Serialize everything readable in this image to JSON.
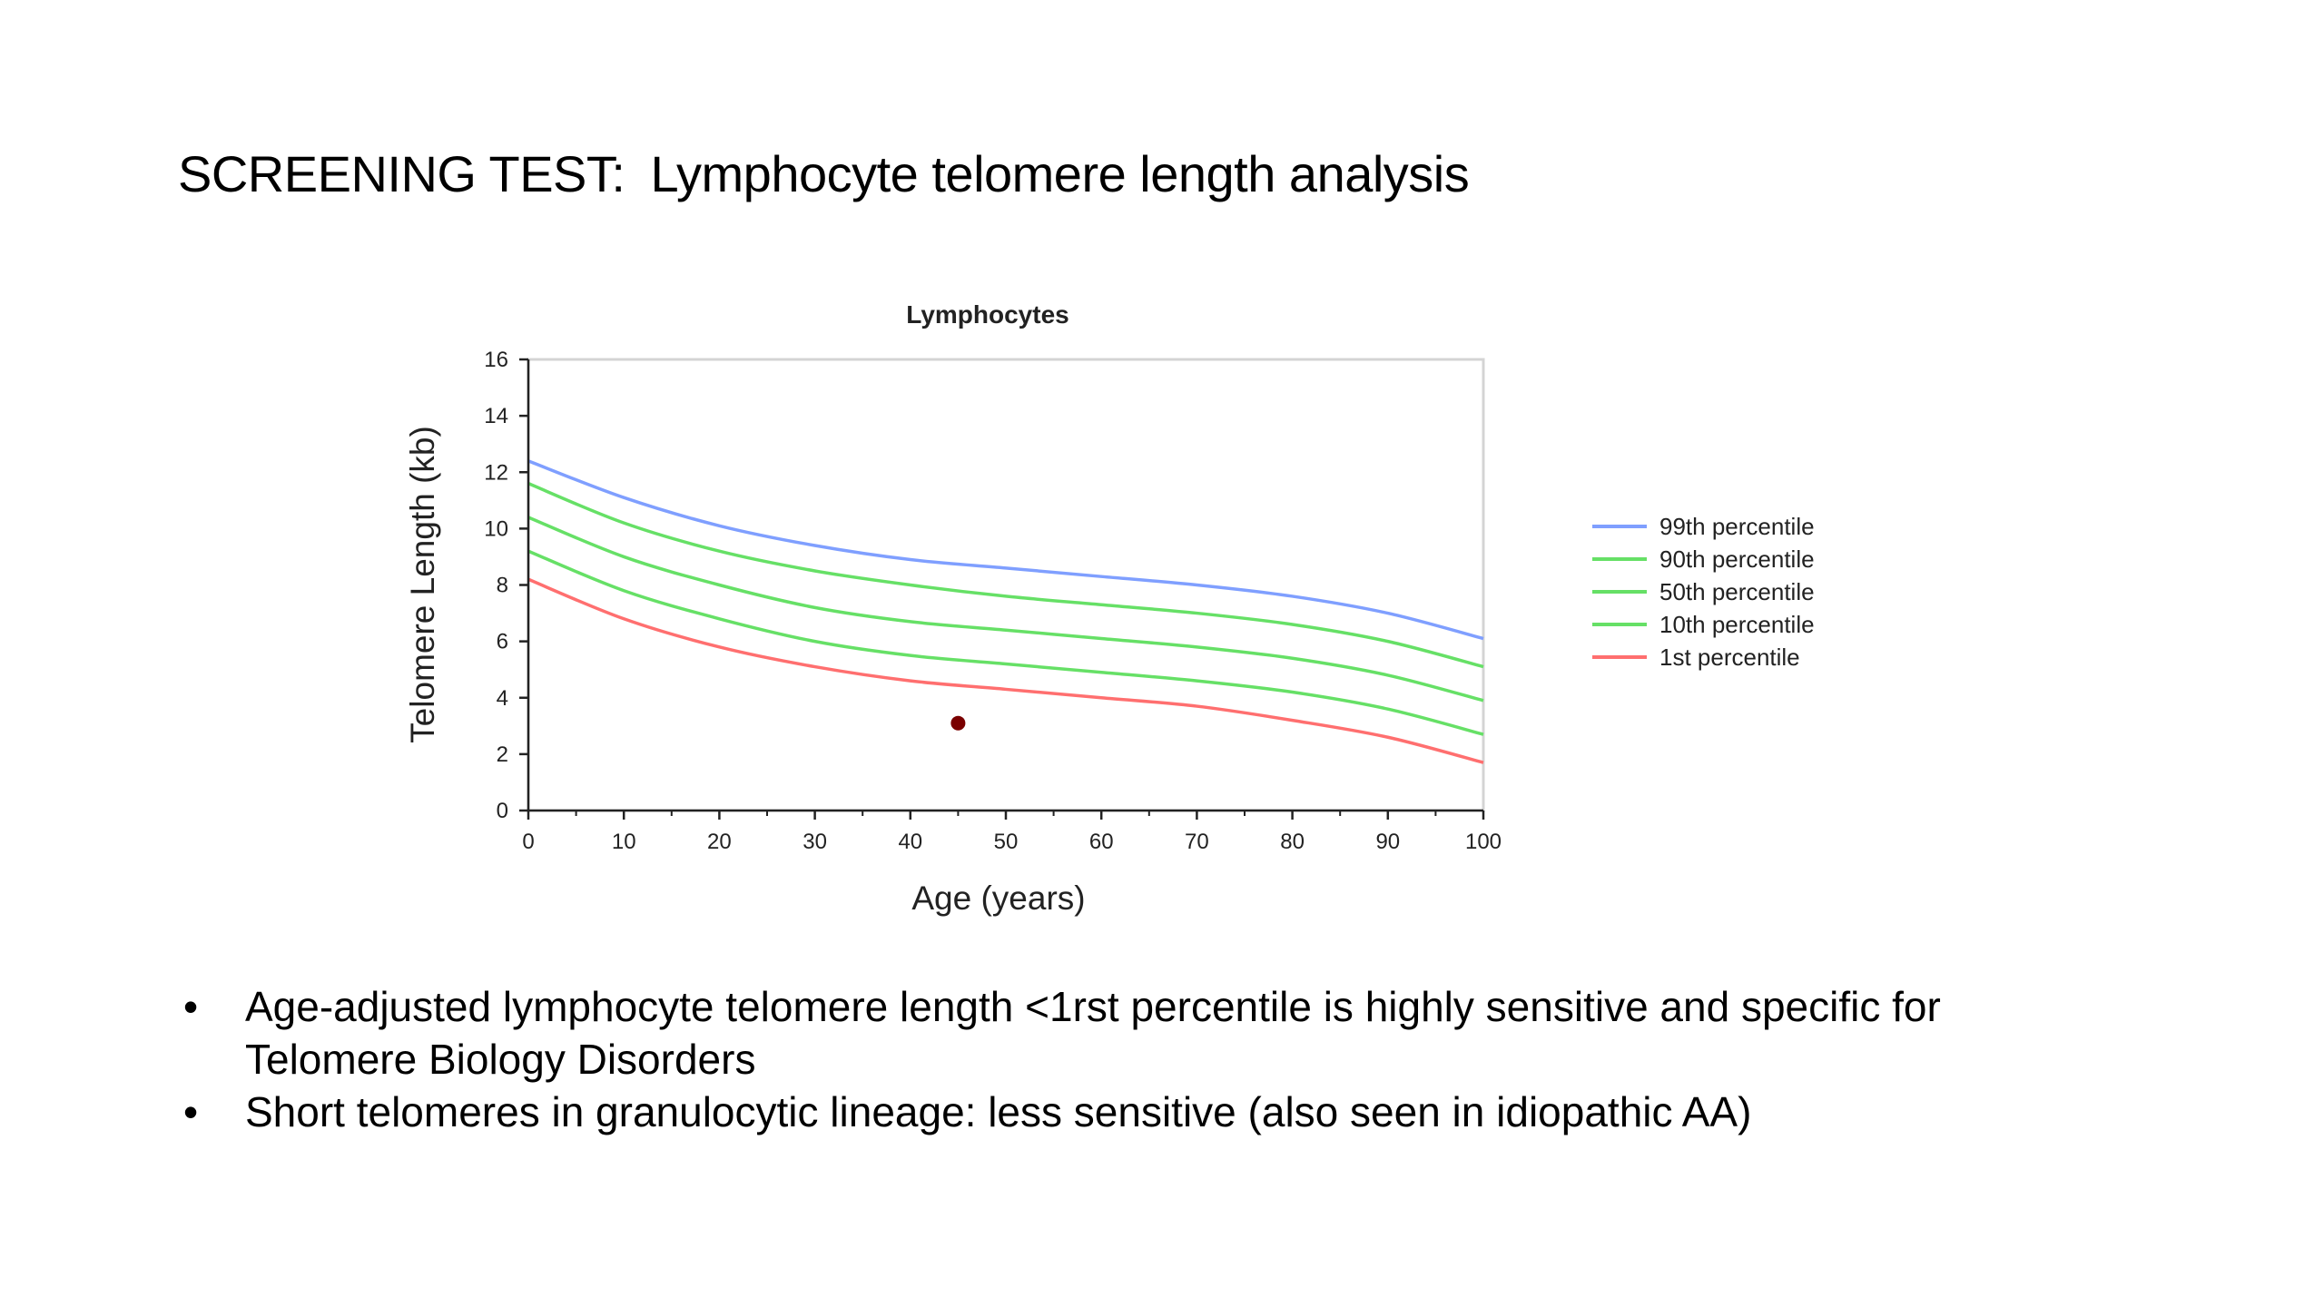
{
  "slide": {
    "title_prefix": "SCREENING TEST:",
    "title_main": "Lymphocyte telomere length analysis",
    "bullets": [
      {
        "line1": "Age-adjusted lymphocyte telomere length <1rst percentile  is highly sensitive and specific for",
        "line2": "Telomere Biology Disorders"
      },
      {
        "line1": "Short telomeres in granulocytic lineage:  less sensitive (also seen in idiopathic AA)",
        "line2": ""
      }
    ]
  },
  "chart_data": {
    "type": "line",
    "title": "Lymphocytes",
    "xlabel": "Age (years)",
    "ylabel": "Telomere Length (kb)",
    "xlim": [
      0,
      100
    ],
    "ylim": [
      0,
      16
    ],
    "xticks": [
      0,
      10,
      20,
      30,
      40,
      50,
      60,
      70,
      80,
      90,
      100
    ],
    "yticks": [
      0,
      2,
      4,
      6,
      8,
      10,
      12,
      14,
      16
    ],
    "grid": false,
    "legend_position": "right",
    "x": [
      0,
      10,
      20,
      30,
      40,
      50,
      60,
      70,
      80,
      90,
      100
    ],
    "series": [
      {
        "name": "99th percentile",
        "color": "#7f9fff",
        "values": [
          12.4,
          11.1,
          10.1,
          9.4,
          8.9,
          8.6,
          8.3,
          8.0,
          7.6,
          7.0,
          6.1
        ]
      },
      {
        "name": "90th percentile",
        "color": "#66e066",
        "values": [
          11.6,
          10.2,
          9.2,
          8.5,
          8.0,
          7.6,
          7.3,
          7.0,
          6.6,
          6.0,
          5.1
        ]
      },
      {
        "name": "50th percentile",
        "color": "#66e066",
        "values": [
          10.4,
          9.0,
          8.0,
          7.2,
          6.7,
          6.4,
          6.1,
          5.8,
          5.4,
          4.8,
          3.9
        ]
      },
      {
        "name": "10th percentile",
        "color": "#66e066",
        "values": [
          9.2,
          7.8,
          6.8,
          6.0,
          5.5,
          5.2,
          4.9,
          4.6,
          4.2,
          3.6,
          2.7
        ]
      },
      {
        "name": "1st percentile",
        "color": "#ff6f6f",
        "values": [
          8.2,
          6.8,
          5.8,
          5.1,
          4.6,
          4.3,
          4.0,
          3.7,
          3.2,
          2.6,
          1.7
        ]
      }
    ],
    "points": [
      {
        "x": 45,
        "y": 3.1,
        "color": "#7a0000"
      }
    ]
  }
}
